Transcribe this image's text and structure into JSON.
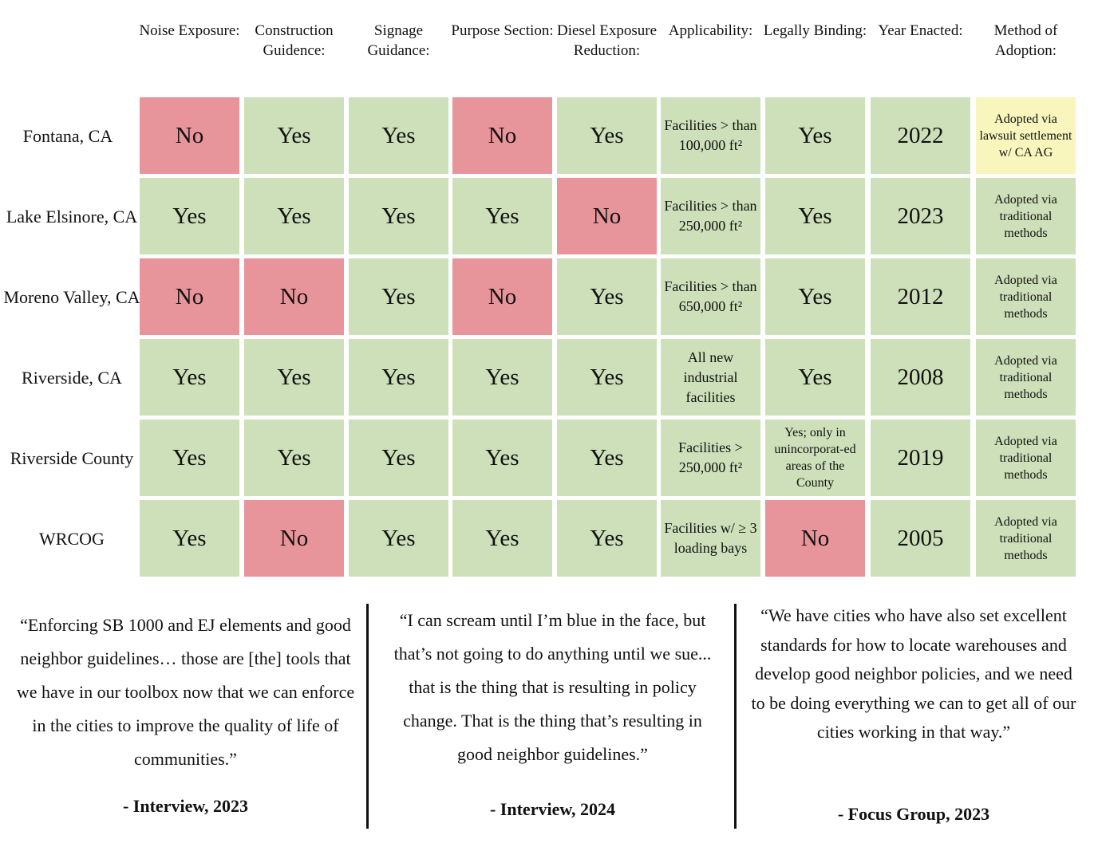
{
  "colors": {
    "yes": "#cde0b9",
    "no": "#e8949b",
    "other": "#f8f5bd"
  },
  "headers": [
    "Noise Exposure:",
    "Construction Guidence:",
    "Signage Guidance:",
    "Purpose Section:",
    "Diesel Exposure Reduction:",
    "Applicability:",
    "Legally Binding:",
    "Year Enacted:",
    "Method of Adoption:"
  ],
  "rows": [
    {
      "label": "Fontana, CA",
      "cells": [
        "No",
        "Yes",
        "Yes",
        "No",
        "Yes",
        "Facilities > than 100,000 ft²",
        "Yes",
        "2022",
        "Adopted via lawsuit settlement w/ CA AG"
      ]
    },
    {
      "label": "Lake Elsinore, CA",
      "cells": [
        "Yes",
        "Yes",
        "Yes",
        "Yes",
        "No",
        "Facilities > than 250,000 ft²",
        "Yes",
        "2023",
        "Adopted via traditional methods"
      ]
    },
    {
      "label": "Moreno Valley, CA",
      "cells": [
        "No",
        "No",
        "Yes",
        "No",
        "Yes",
        "Facilities > than 650,000 ft²",
        "Yes",
        "2012",
        "Adopted via traditional methods"
      ]
    },
    {
      "label": "Riverside, CA",
      "cells": [
        "Yes",
        "Yes",
        "Yes",
        "Yes",
        "Yes",
        "All new industrial facilities",
        "Yes",
        "2008",
        "Adopted via traditional methods"
      ]
    },
    {
      "label": "Riverside County",
      "cells": [
        "Yes",
        "Yes",
        "Yes",
        "Yes",
        "Yes",
        "Facilities > 250,000 ft²",
        "Yes; only in unincorporat-ed areas of the County",
        "2019",
        "Adopted via traditional methods"
      ]
    },
    {
      "label": "WRCOG",
      "cells": [
        "Yes",
        "No",
        "Yes",
        "Yes",
        "Yes",
        "Facilities w/ ≥ 3 loading bays",
        "No",
        "2005",
        "Adopted via traditional methods"
      ]
    }
  ],
  "quotes": [
    {
      "text": "“Enforcing SB 1000 and EJ elements and good neighbor guidelines…  those are [the] tools that we have in our toolbox now that we can enforce in the cities to improve the quality of life of communities.”",
      "attribution": "- Interview, 2023"
    },
    {
      "text": "“I can scream until I’m blue in the face, but that’s not going to do anything until we sue... that is the thing that is resulting in policy change. That is the thing that’s resulting in good neighbor guidelines.”",
      "attribution": "- Interview, 2024"
    },
    {
      "text": "“We have cities who have also set excellent standards for how to locate warehouses and develop good neighbor policies, and we need to be doing everything we can to get all of our cities working in that way.”",
      "attribution": "- Focus Group, 2023"
    }
  ]
}
